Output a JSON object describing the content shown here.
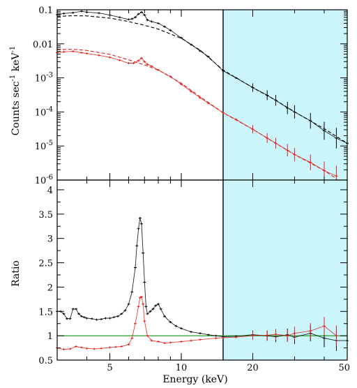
{
  "chart_data": [
    {
      "type": "line",
      "panel": "top",
      "xlabel": "",
      "ylabel": "Counts sec^-1 keV^-1",
      "ylabel_base": "Counts sec",
      "ylabel_exp1": "-1",
      "ylabel_mid": " keV",
      "ylabel_exp2": "-1",
      "x_scale": "log",
      "y_scale": "log",
      "xlim": [
        3,
        50
      ],
      "ylim": [
        1e-06,
        0.1
      ],
      "y_ticks": [
        {
          "value": 0.1,
          "label": "0.1"
        },
        {
          "value": 0.01,
          "label": "0.01"
        },
        {
          "value": 0.001,
          "label": "10",
          "exp": "-3"
        },
        {
          "value": 0.0001,
          "label": "10",
          "exp": "-4"
        },
        {
          "value": 1e-05,
          "label": "10",
          "exp": "-5"
        },
        {
          "value": 1e-06,
          "label": "10",
          "exp": "-6"
        }
      ],
      "highlight_band": {
        "from": 15,
        "to": 50,
        "color": "#c9f5fb"
      },
      "vertical_line": 15,
      "series": [
        {
          "color": "#000000",
          "style": "data",
          "x": [
            3.0,
            3.2,
            3.5,
            3.8,
            4.0,
            4.5,
            5.0,
            5.5,
            6.0,
            6.2,
            6.4,
            6.6,
            6.8,
            7.0,
            7.2,
            7.5,
            8.0,
            8.5,
            9.0,
            10.0,
            11.0,
            12.0,
            13.0,
            15.0,
            17.0,
            20.0,
            23.0,
            25.0,
            28.0,
            30.0,
            35.0,
            40.0,
            45.0,
            50.0
          ],
          "y": [
            0.072,
            0.078,
            0.082,
            0.09,
            0.085,
            0.08,
            0.07,
            0.06,
            0.052,
            0.054,
            0.06,
            0.075,
            0.085,
            0.07,
            0.05,
            0.045,
            0.04,
            0.032,
            0.025,
            0.015,
            0.0095,
            0.0062,
            0.0042,
            0.0016,
            0.001,
            0.00052,
            0.00031,
            0.00022,
            0.00013,
            0.0001,
            5.5e-05,
            2.8e-05,
            1.7e-05,
            1.2e-05
          ]
        },
        {
          "color": "#000000",
          "style": "dashed",
          "x": [
            3.0,
            3.5,
            4.0,
            5.0,
            6.0,
            7.0,
            8.0,
            10.0,
            12.0,
            15.0,
            20.0,
            25.0,
            30.0,
            40.0,
            50.0
          ],
          "y": [
            0.064,
            0.067,
            0.066,
            0.057,
            0.045,
            0.035,
            0.027,
            0.0145,
            0.0065,
            0.0017,
            0.00052,
            0.00022,
            0.0001,
            3.2e-05,
            1.2e-05
          ]
        },
        {
          "color": "#e0201b",
          "style": "data",
          "x": [
            3.0,
            3.2,
            3.5,
            3.8,
            4.0,
            4.5,
            5.0,
            5.5,
            6.0,
            6.3,
            6.6,
            6.8,
            7.0,
            7.2,
            7.5,
            8.0,
            9.0,
            10.0,
            11.0,
            12.0,
            13.0,
            15.0,
            17.0,
            20.0,
            23.0,
            25.0,
            28.0,
            30.0,
            35.0,
            40.0,
            45.0
          ],
          "y": [
            0.0055,
            0.0058,
            0.006,
            0.0055,
            0.0052,
            0.0046,
            0.004,
            0.0033,
            0.0027,
            0.0027,
            0.0032,
            0.0038,
            0.003,
            0.0025,
            0.0022,
            0.0017,
            0.0011,
            0.00065,
            0.0004,
            0.00026,
            0.00018,
            9.5e-05,
            6e-05,
            3.1e-05,
            1.7e-05,
            1.2e-05,
            7.5e-06,
            5.6e-06,
            3.3e-06,
            1.9e-06,
            1.3e-06
          ]
        },
        {
          "color": "#e0201b",
          "style": "dashed",
          "x": [
            3.0,
            3.5,
            4.0,
            5.0,
            6.0,
            7.0,
            8.0,
            10.0,
            12.0,
            15.0,
            20.0,
            25.0,
            30.0,
            40.0,
            45.0
          ],
          "y": [
            0.0068,
            0.0069,
            0.0064,
            0.0049,
            0.0034,
            0.0024,
            0.0017,
            0.0007,
            0.00028,
            9.5e-05,
            3.1e-05,
            1.2e-05,
            5.6e-06,
            1.9e-06,
            1.1e-06
          ]
        }
      ]
    },
    {
      "type": "line",
      "panel": "bottom",
      "xlabel": "Energy (keV)",
      "ylabel": "Ratio",
      "x_scale": "log",
      "y_scale": "linear",
      "xlim": [
        3,
        50
      ],
      "ylim": [
        0.5,
        4.2
      ],
      "x_ticks": [
        {
          "value": 5,
          "label": "5"
        },
        {
          "value": 10,
          "label": "10"
        },
        {
          "value": 20,
          "label": "20"
        },
        {
          "value": 50,
          "label": "50"
        }
      ],
      "y_ticks": [
        {
          "value": 0.5,
          "label": "0.5"
        },
        {
          "value": 1,
          "label": "1"
        },
        {
          "value": 1.5,
          "label": "1.5"
        },
        {
          "value": 2,
          "label": "2"
        },
        {
          "value": 2.5,
          "label": "2.5"
        },
        {
          "value": 3,
          "label": "3"
        },
        {
          "value": 3.5,
          "label": "3.5"
        },
        {
          "value": 4,
          "label": "4"
        }
      ],
      "highlight_band": {
        "from": 15,
        "to": 50,
        "color": "#c9f5fb"
      },
      "vertical_line": 15,
      "reference_line": {
        "value": 1,
        "color": "#2aa02a"
      },
      "series": [
        {
          "color": "#000000",
          "style": "data",
          "x": [
            3.0,
            3.1,
            3.2,
            3.3,
            3.4,
            3.5,
            3.6,
            3.7,
            3.8,
            3.9,
            4.0,
            4.2,
            4.4,
            4.6,
            4.8,
            5.0,
            5.2,
            5.4,
            5.6,
            5.8,
            6.0,
            6.2,
            6.4,
            6.5,
            6.6,
            6.7,
            6.8,
            6.9,
            7.0,
            7.1,
            7.2,
            7.4,
            7.6,
            7.8,
            8.0,
            8.2,
            8.5,
            9.0,
            9.5,
            10.0,
            11.0,
            12.0,
            13.0,
            14.0,
            15.0,
            17.0,
            20.0,
            23.0,
            25.0,
            28.0,
            30.0,
            35.0,
            40.0,
            45.0,
            50.0
          ],
          "y": [
            1.5,
            1.5,
            1.45,
            1.35,
            1.35,
            1.55,
            1.55,
            1.45,
            1.4,
            1.38,
            1.36,
            1.35,
            1.33,
            1.34,
            1.36,
            1.36,
            1.38,
            1.4,
            1.45,
            1.52,
            1.65,
            1.9,
            2.4,
            2.85,
            3.2,
            3.42,
            3.3,
            2.7,
            2.1,
            1.6,
            1.45,
            1.5,
            1.55,
            1.62,
            1.65,
            1.55,
            1.4,
            1.28,
            1.2,
            1.15,
            1.08,
            1.05,
            1.02,
            1.0,
            0.98,
            0.99,
            1.02,
            1.0,
            0.98,
            1.02,
            0.97,
            1.05,
            0.95,
            0.9,
            0.9
          ]
        },
        {
          "color": "#e0201b",
          "style": "data",
          "x": [
            3.0,
            3.2,
            3.4,
            3.6,
            3.8,
            4.0,
            4.3,
            4.6,
            5.0,
            5.3,
            5.6,
            6.0,
            6.2,
            6.4,
            6.6,
            6.7,
            6.8,
            6.9,
            7.0,
            7.2,
            7.5,
            8.0,
            8.5,
            9.0,
            10.0,
            11.0,
            12.0,
            14.0,
            15.0,
            17.0,
            20.0,
            23.0,
            25.0,
            28.0,
            30.0,
            35.0,
            40.0,
            45.0
          ],
          "y": [
            0.75,
            0.72,
            0.73,
            0.78,
            0.76,
            0.74,
            0.73,
            0.74,
            0.76,
            0.77,
            0.78,
            0.82,
            0.95,
            1.25,
            1.6,
            1.78,
            1.8,
            1.65,
            1.3,
            1.0,
            0.9,
            0.88,
            0.85,
            0.86,
            0.88,
            0.9,
            0.92,
            0.95,
            0.96,
            0.97,
            1.0,
            1.01,
            1.03,
            1.0,
            1.05,
            1.1,
            1.2,
            1.0
          ]
        }
      ]
    }
  ]
}
